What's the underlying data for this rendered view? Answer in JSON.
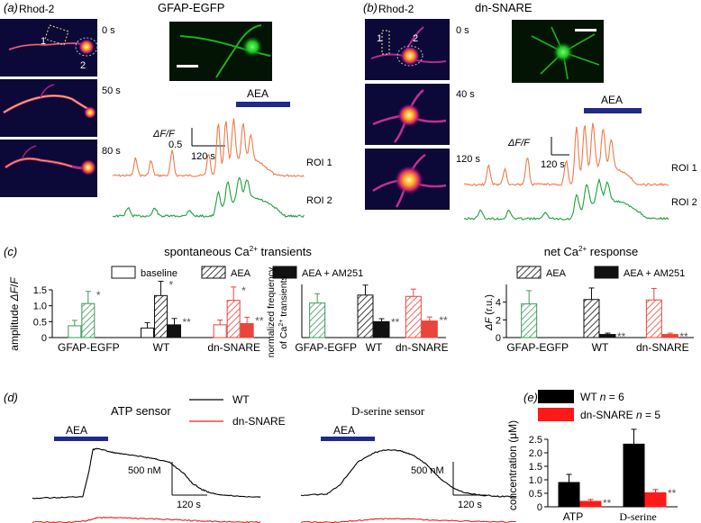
{
  "panels": {
    "a": {
      "label": "(a)",
      "dye": "Rhod-2",
      "construct": "GFAP-EGFP",
      "roi_marks": [
        "1",
        "2"
      ],
      "times": [
        "0 s",
        "50 s",
        "80 s"
      ],
      "drug": "AEA",
      "scale_y": "0.5",
      "scale_x": "120 s",
      "scale_unit": "ΔF/F",
      "traces": [
        "ROI 1",
        "ROI 2"
      ]
    },
    "b": {
      "label": "(b)",
      "dye": "Rhod-2",
      "construct": "dn-SNARE",
      "roi_marks": [
        "1",
        "2"
      ],
      "times": [
        "0 s",
        "40 s",
        "120 s"
      ],
      "drug": "AEA",
      "scale_x": "120 s",
      "scale_unit": "ΔF/F",
      "traces": [
        "ROI 1",
        "ROI 2"
      ]
    },
    "c": {
      "label": "(c)",
      "title_left": "spontaneous Ca2+ transients",
      "title_right": "net Ca2+ response",
      "legend_left": [
        "baseline",
        "AEA",
        "AEA + AM251"
      ],
      "legend_right": [
        "AEA",
        "AEA + AM251"
      ],
      "groups": [
        "GFAP-EGFP",
        "WT",
        "dn-SNARE"
      ]
    },
    "d": {
      "label": "(d)",
      "title_left": "ATP sensor",
      "title_right": "D-serine sensor",
      "drug": "AEA",
      "legend": [
        "WT",
        "dn-SNARE"
      ],
      "scale_y": "500 nM",
      "scale_x": "120 s"
    },
    "e": {
      "label": "(e)",
      "legend": [
        "WT n = 6",
        "dn-SNARE n = 5"
      ]
    }
  },
  "colors": {
    "gfap": "#3d9a5a",
    "wt": "#111111",
    "dn": "#e8453c",
    "roi1": "#f07a4a",
    "roi2": "#1fa03c",
    "drug_bar": "#1f2a8c",
    "sensor_wt": "#000000",
    "sensor_dn": "#e82020",
    "e_wt": "#000000",
    "e_dn": "#ff1a1a"
  },
  "chart_data": [
    {
      "id": "c1",
      "type": "bar",
      "title": "spontaneous Ca2+ transients",
      "ylabel": "amplitude ΔF/F",
      "ylim": [
        0,
        1.5
      ],
      "yticks": [
        0,
        0.5,
        1.0,
        1.5
      ],
      "categories": [
        "GFAP-EGFP",
        "WT",
        "dn-SNARE"
      ],
      "series": [
        {
          "name": "baseline",
          "values": [
            0.37,
            0.3,
            0.4
          ],
          "errors": [
            0.17,
            0.17,
            0.15
          ],
          "sig": [
            "",
            "",
            ""
          ]
        },
        {
          "name": "AEA",
          "values": [
            1.07,
            1.32,
            1.17
          ],
          "errors": [
            0.38,
            0.45,
            0.42
          ],
          "sig": [
            "*",
            "*",
            "*"
          ]
        },
        {
          "name": "AEA + AM251",
          "values": [
            null,
            0.4,
            0.44
          ],
          "errors": [
            null,
            0.2,
            0.2
          ],
          "sig": [
            "",
            "**",
            "**"
          ]
        }
      ]
    },
    {
      "id": "c2",
      "type": "bar",
      "ylabel": "normalized frequency of Ca2+ transients",
      "ylim": [
        0,
        4
      ],
      "categories": [
        "GFAP-EGFP",
        "WT",
        "dn-SNARE"
      ],
      "series": [
        {
          "name": "AEA",
          "values": [
            2.6,
            3.2,
            3.1
          ],
          "errors": [
            0.7,
            0.75,
            0.55
          ],
          "sig": [
            "",
            "",
            ""
          ]
        },
        {
          "name": "AEA + AM251",
          "values": [
            null,
            1.2,
            1.25
          ],
          "errors": [
            null,
            0.22,
            0.3
          ],
          "sig": [
            "",
            "**",
            "**"
          ]
        }
      ]
    },
    {
      "id": "c3",
      "type": "bar",
      "title": "net Ca2+ response",
      "ylabel": "ΔF (r.u.)",
      "ylim": [
        0,
        6
      ],
      "yticks": [
        0,
        2,
        4
      ],
      "categories": [
        "GFAP-EGFP",
        "WT",
        "dn-SNARE"
      ],
      "series": [
        {
          "name": "AEA",
          "values": [
            3.8,
            4.3,
            4.25
          ],
          "errors": [
            1.5,
            1.3,
            1.3
          ],
          "sig": [
            "",
            "",
            ""
          ]
        },
        {
          "name": "AEA + AM251",
          "values": [
            null,
            0.35,
            0.35
          ],
          "errors": [
            null,
            0.15,
            0.15
          ],
          "sig": [
            "",
            "**",
            "**"
          ]
        }
      ]
    },
    {
      "id": "e",
      "type": "bar",
      "ylabel": "concentration (μM)",
      "ylim": [
        0,
        2.5
      ],
      "yticks": [
        0,
        0.5,
        1.0,
        1.5,
        2.0,
        2.5
      ],
      "categories": [
        "ATP",
        "D-serine"
      ],
      "series": [
        {
          "name": "WT n = 6",
          "values": [
            0.9,
            2.32
          ],
          "errors": [
            0.3,
            0.55
          ],
          "sig": [
            "",
            ""
          ]
        },
        {
          "name": "dn-SNARE n = 5",
          "values": [
            0.2,
            0.52
          ],
          "errors": [
            0.07,
            0.12
          ],
          "sig": [
            "**",
            "**"
          ]
        }
      ]
    },
    {
      "id": "d-atp",
      "type": "line",
      "title": "ATP sensor",
      "series": [
        {
          "name": "WT",
          "x": [
            0,
            30,
            55,
            62,
            66,
            72,
            85,
            100,
            120,
            135,
            150,
            165,
            175,
            185,
            195,
            210,
            230,
            250
          ],
          "y": [
            0.07,
            0.08,
            0.1,
            0.55,
            0.9,
            0.92,
            0.86,
            0.82,
            0.78,
            0.74,
            0.68,
            0.5,
            0.32,
            0.22,
            0.16,
            0.12,
            0.1,
            0.09
          ]
        },
        {
          "name": "dn-SNARE",
          "x": [
            0,
            40,
            58,
            70,
            85,
            100,
            120,
            140,
            160,
            180,
            200,
            230,
            250
          ],
          "y": [
            0.0,
            0.0,
            0.02,
            0.07,
            0.08,
            0.07,
            0.06,
            0.05,
            0.04,
            0.02,
            0.01,
            0.0,
            0.0
          ]
        }
      ]
    },
    {
      "id": "d-dser",
      "type": "line",
      "title": "D-serine sensor",
      "series": [
        {
          "name": "WT",
          "x": [
            0,
            30,
            45,
            65,
            85,
            100,
            115,
            130,
            145,
            160,
            175,
            190,
            210,
            230,
            250
          ],
          "y": [
            0.12,
            0.14,
            0.3,
            0.68,
            0.85,
            0.9,
            0.88,
            0.8,
            0.65,
            0.42,
            0.25,
            0.16,
            0.12,
            0.1,
            0.1
          ]
        },
        {
          "name": "dn-SNARE",
          "x": [
            0,
            40,
            60,
            85,
            110,
            130,
            155,
            180,
            210,
            250
          ],
          "y": [
            0.0,
            0.0,
            0.02,
            0.05,
            0.06,
            0.05,
            0.03,
            0.02,
            0.01,
            0.0
          ]
        }
      ]
    }
  ]
}
